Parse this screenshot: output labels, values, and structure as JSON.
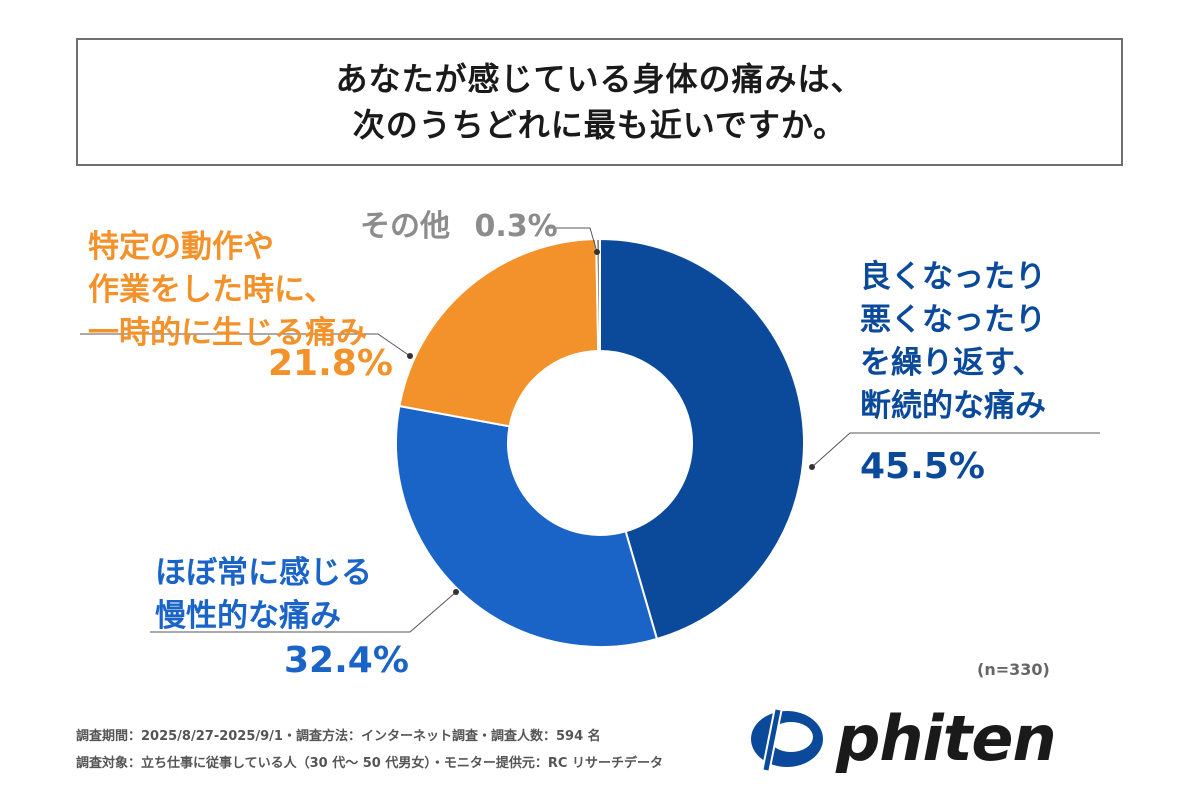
{
  "title": {
    "line1": "あなたが感じている身体の痛みは、",
    "line2": "次のうちどれに最も近いですか。"
  },
  "chart_data": {
    "type": "pie",
    "title": "あなたが感じている身体の痛みは、次のうちどれに最も近いですか。",
    "slices": [
      {
        "name": "良くなったり悪くなったりを繰り返す、断続的な痛み",
        "value": 45.5,
        "value_label": "45.5%",
        "color": "#0b4a9a"
      },
      {
        "name": "ほぼ常に感じる慢性的な痛み",
        "value": 32.4,
        "value_label": "32.4%",
        "color": "#1a64c8"
      },
      {
        "name": "特定の動作や作業をした時に、一時的に生じる痛み",
        "value": 21.8,
        "value_label": "21.8%",
        "color": "#f3922a"
      },
      {
        "name": "その他",
        "value": 0.3,
        "value_label": "0.3%",
        "color": "#8c8c8c"
      }
    ]
  },
  "labels": {
    "s1_lines": [
      "良くなったり",
      "悪くなったり",
      "を繰り返す、",
      "断続的な痛み"
    ],
    "s2_lines": [
      "ほぼ常に感じる",
      "慢性的な痛み"
    ],
    "s3_lines": [
      "特定の動作や",
      "作業をした時に、",
      "一時的に生じる痛み"
    ],
    "s4_name": "その他"
  },
  "sample": "(n=330)",
  "footer": {
    "line1": "調査期間：2025/8/27-2025/9/1・調査方法：インターネット調査・調査人数：594 名",
    "line2": "調査対象：立ち仕事に従事している人（30 代～ 50 代男女）・モニター提供元：RC リサーチデータ"
  },
  "brand": {
    "name": "phiten",
    "color": "#0b4a9a"
  }
}
